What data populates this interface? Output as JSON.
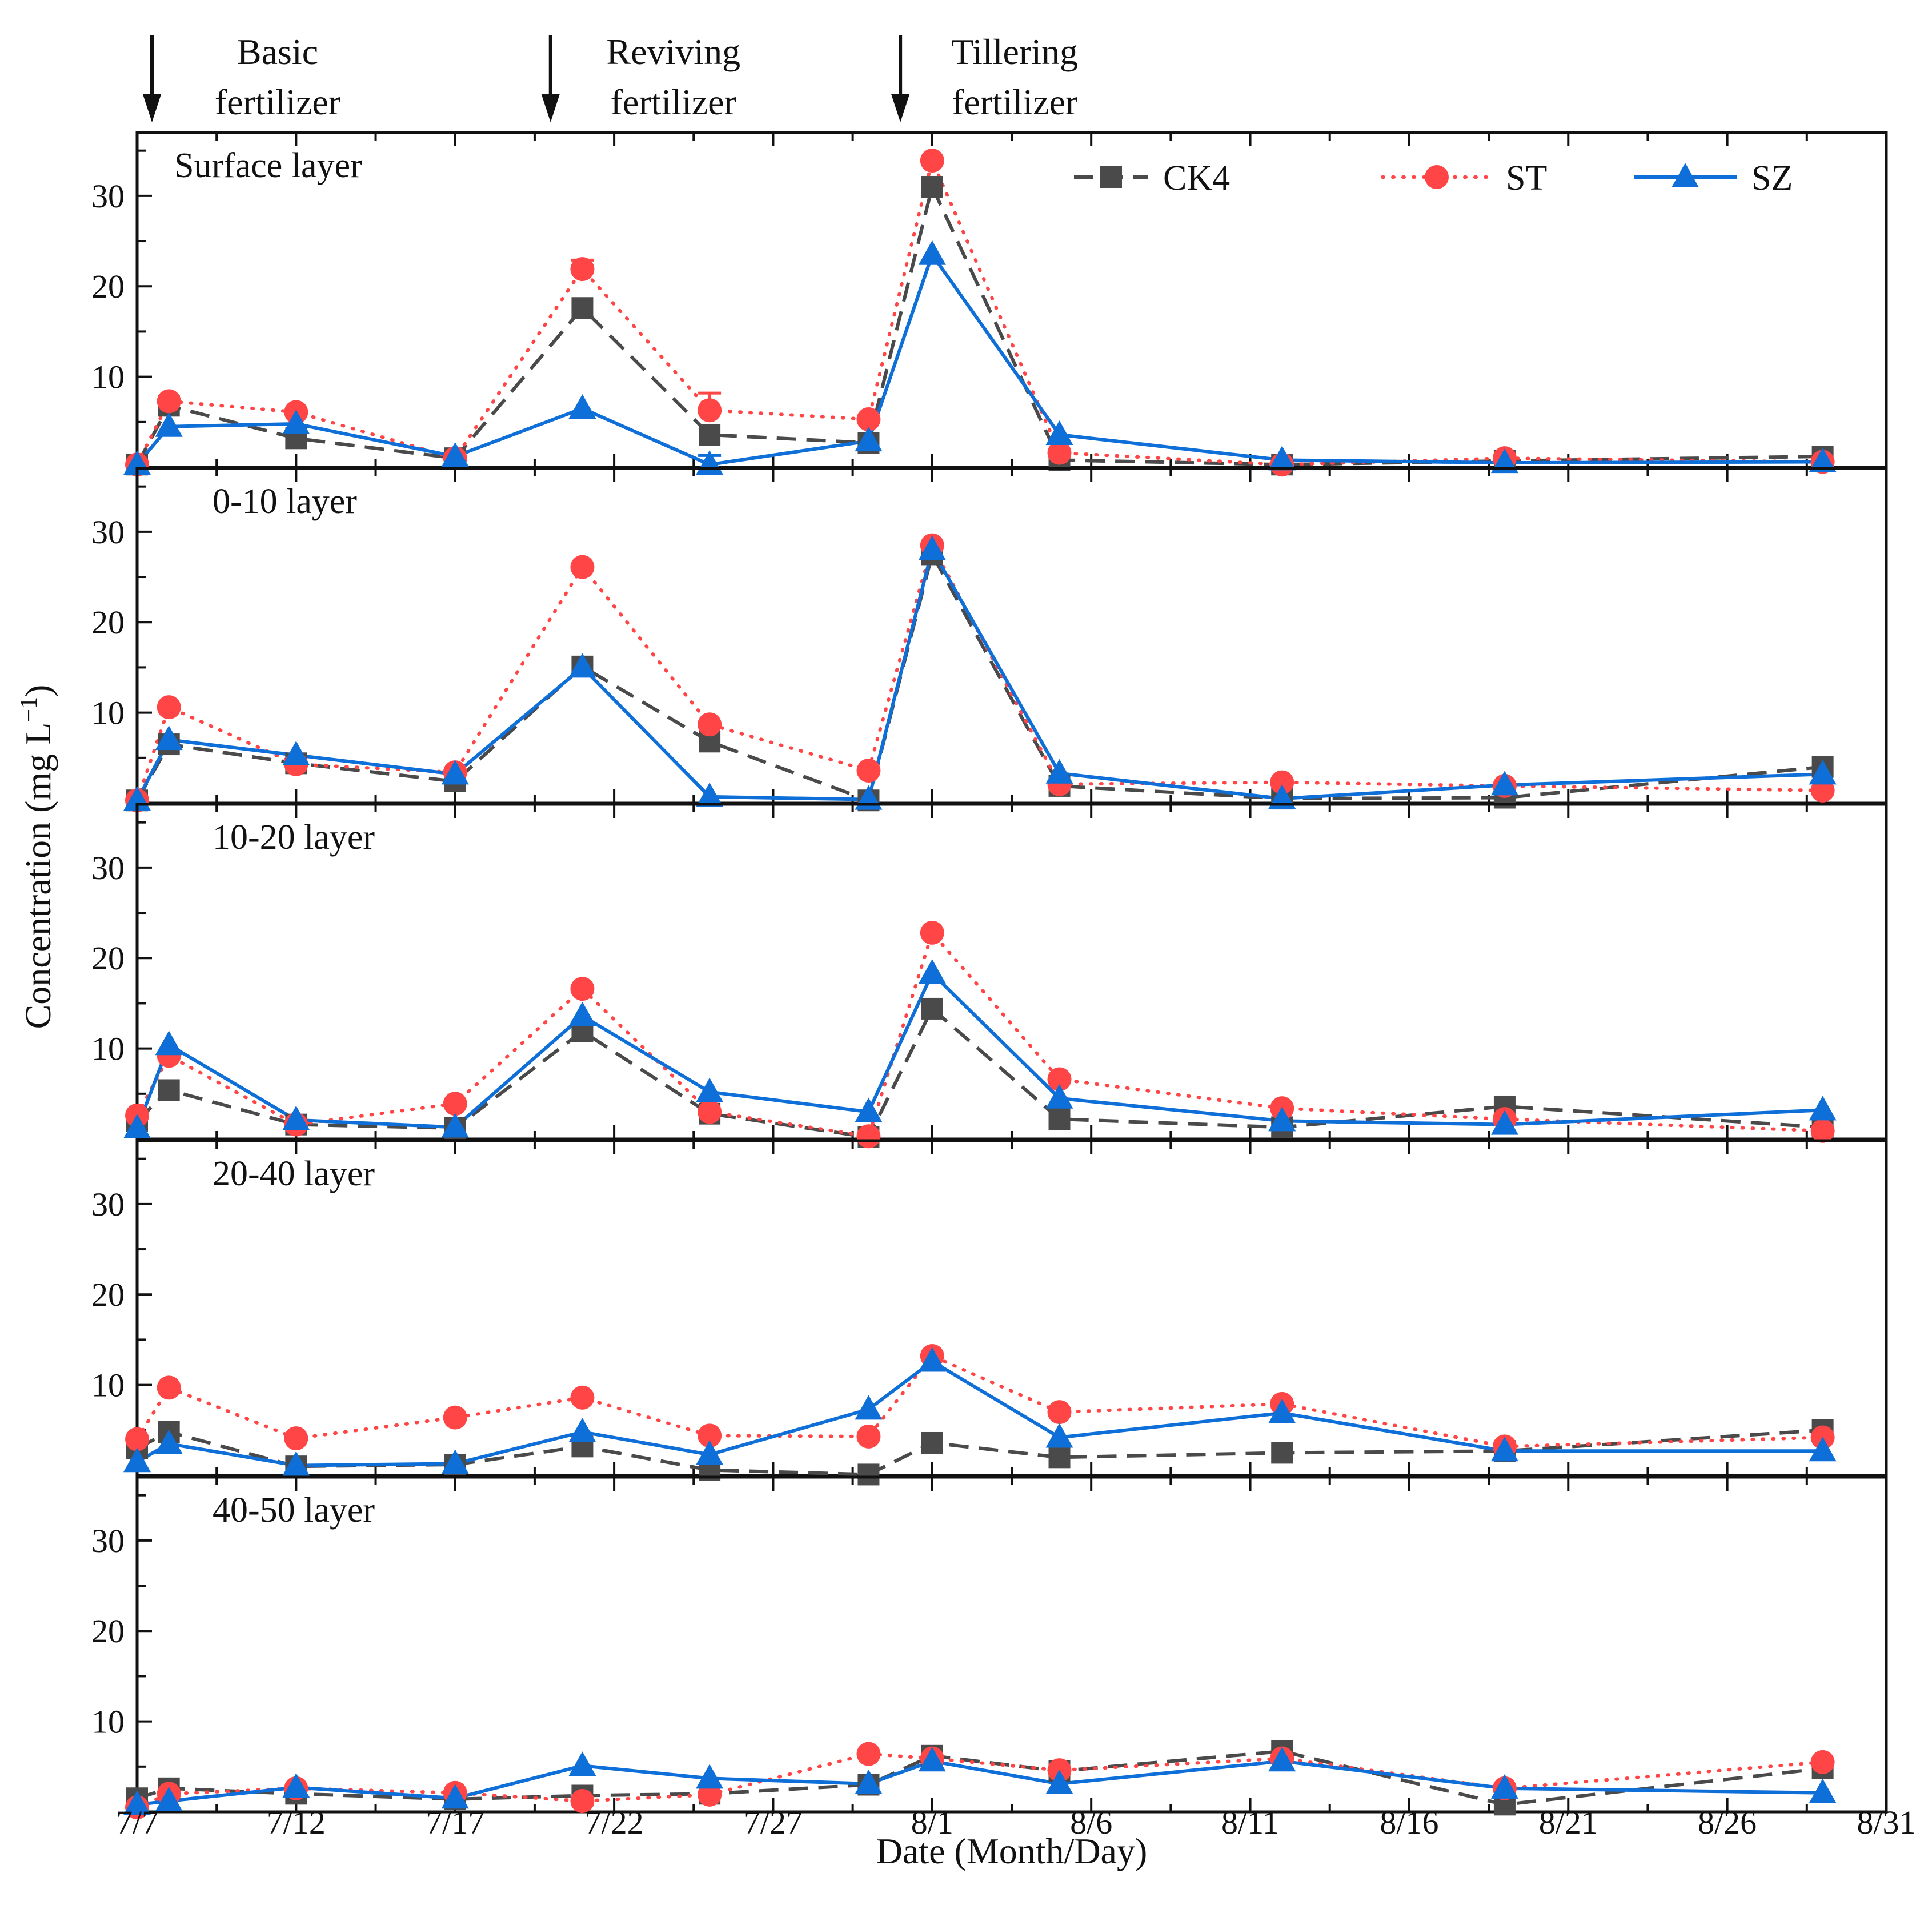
{
  "chart_data": {
    "type": "line",
    "xlabel": "Date (Month/Day)",
    "ylabel": "Concentration (mg L",
    "ylabel_sup": "−1",
    "ylabel_close": ")",
    "x_unit": "day offset from 7/7",
    "x_ticks": [
      0,
      5,
      10,
      15,
      20,
      25,
      30,
      35,
      40,
      45,
      50,
      55
    ],
    "x_tick_labels": [
      "7/7",
      "7/12",
      "7/17",
      "7/22",
      "7/27",
      "8/1",
      "8/6",
      "8/11",
      "8/16",
      "8/21",
      "8/26",
      "8/31"
    ],
    "xlim": [
      0,
      55
    ],
    "ylim": [
      0,
      37
    ],
    "y_ticks": [
      10,
      20,
      30
    ],
    "y_tick_labels": [
      "10",
      "20",
      "30"
    ],
    "x": [
      0,
      1,
      5,
      10,
      14,
      18,
      23,
      25,
      29,
      36,
      43,
      53
    ],
    "legend": [
      {
        "name": "CK4",
        "color": "#4a4a4a",
        "marker": "square",
        "dash": "dashed"
      },
      {
        "name": "ST",
        "color": "#ff4545",
        "marker": "circle",
        "dash": "dotted"
      },
      {
        "name": "SZ",
        "color": "#0f6fd8",
        "marker": "triangle",
        "dash": "solid"
      }
    ],
    "annotations": [
      {
        "x": 0,
        "lines": [
          "Basic",
          "fertilizer"
        ]
      },
      {
        "x": 13,
        "lines": [
          "Reviving",
          "fertilizer"
        ]
      },
      {
        "x": 24,
        "lines": [
          "Tillering",
          "fertilizer"
        ]
      }
    ],
    "panels": [
      {
        "label": "Surface layer",
        "series": [
          {
            "name": "CK4",
            "values": [
              0.3,
              6.8,
              3.2,
              1.0,
              17.6,
              3.6,
              2.7,
              31.0,
              0.8,
              0.3,
              0.7,
              1.2
            ]
          },
          {
            "name": "ST",
            "values": [
              0.3,
              7.3,
              6.1,
              1.0,
              21.9,
              6.3,
              5.3,
              33.9,
              1.6,
              0.3,
              1.0,
              0.6
            ]
          },
          {
            "name": "SZ",
            "values": [
              0.3,
              4.5,
              4.8,
              1.2,
              6.5,
              0.3,
              2.9,
              23.5,
              3.6,
              0.8,
              0.5,
              0.6
            ]
          }
        ],
        "error_bars": [
          {
            "series": "ST",
            "x": 18,
            "error": 1.9
          },
          {
            "series": "ST",
            "x": 14,
            "error": 1.0
          },
          {
            "series": "SZ",
            "x": 18,
            "error": 1.0
          }
        ]
      },
      {
        "label": "0-10 layer",
        "series": [
          {
            "name": "CK4",
            "values": [
              0.3,
              6.5,
              4.4,
              2.4,
              15.1,
              6.8,
              0.3,
              27.5,
              1.9,
              0.5,
              0.6,
              4.0
            ]
          },
          {
            "name": "ST",
            "values": [
              0.3,
              10.6,
              4.3,
              3.4,
              26.1,
              8.7,
              3.6,
              28.5,
              2.1,
              2.3,
              1.9,
              1.4
            ]
          },
          {
            "name": "SZ",
            "values": [
              0.3,
              7.0,
              5.3,
              3.2,
              15.0,
              0.7,
              0.4,
              28.0,
              3.3,
              0.5,
              2.0,
              3.2
            ]
          }
        ],
        "error_bars": []
      },
      {
        "label": "10-20 layer",
        "series": [
          {
            "name": "CK4",
            "values": [
              2.0,
              5.4,
              1.6,
              1.2,
              11.9,
              2.8,
              0.2,
              14.4,
              2.2,
              1.3,
              3.6,
              1.3
            ]
          },
          {
            "name": "ST",
            "values": [
              2.6,
              9.2,
              1.6,
              3.9,
              16.6,
              3.0,
              0.3,
              22.8,
              6.6,
              3.4,
              2.2,
              0.9
            ]
          },
          {
            "name": "SZ",
            "values": [
              1.2,
              10.4,
              2.1,
              1.3,
              13.6,
              5.2,
              3.0,
              18.3,
              4.5,
              2.0,
              1.6,
              3.2
            ]
          }
        ],
        "error_bars": []
      },
      {
        "label": "20-40 layer",
        "series": [
          {
            "name": "CK4",
            "values": [
              3.0,
              4.8,
              1.0,
              1.2,
              3.2,
              0.6,
              0.1,
              3.6,
              2.0,
              2.5,
              2.7,
              5.0
            ]
          },
          {
            "name": "ST",
            "values": [
              4.0,
              9.7,
              4.1,
              6.4,
              8.6,
              4.4,
              4.3,
              13.2,
              7.0,
              7.9,
              3.2,
              4.2
            ]
          },
          {
            "name": "SZ",
            "values": [
              1.5,
              3.5,
              1.1,
              1.3,
              4.8,
              2.3,
              7.3,
              12.6,
              4.2,
              6.9,
              2.7,
              2.7
            ]
          }
        ],
        "error_bars": []
      },
      {
        "label": "40-50 layer",
        "series": [
          {
            "name": "CK4",
            "values": [
              1.5,
              2.6,
              2.0,
              1.4,
              1.8,
              2.0,
              3.0,
              6.2,
              4.5,
              6.7,
              0.8,
              4.8
            ]
          },
          {
            "name": "ST",
            "values": [
              0.5,
              2.0,
              2.6,
              2.1,
              1.2,
              1.9,
              6.4,
              5.9,
              4.6,
              5.9,
              2.6,
              5.5
            ]
          },
          {
            "name": "SZ",
            "values": [
              0.8,
              1.2,
              2.7,
              1.5,
              5.1,
              3.7,
              3.1,
              5.6,
              3.1,
              5.6,
              2.6,
              2.1
            ]
          }
        ],
        "error_bars": []
      }
    ]
  }
}
